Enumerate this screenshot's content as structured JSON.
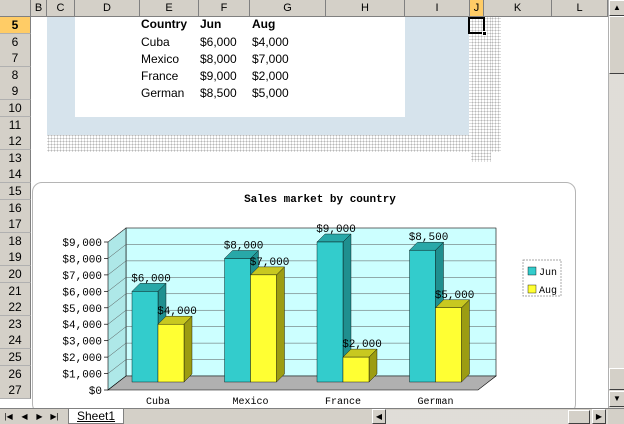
{
  "columns": [
    "B",
    "C",
    "D",
    "E",
    "F",
    "G",
    "H",
    "I",
    "J",
    "K",
    "L"
  ],
  "rows": [
    "5",
    "6",
    "7",
    "8",
    "9",
    "10",
    "11",
    "12",
    "13",
    "14",
    "15",
    "16",
    "17",
    "18",
    "19",
    "20",
    "21",
    "22",
    "23",
    "24",
    "25",
    "26",
    "27"
  ],
  "selected_column": "J",
  "selected_row": "5",
  "table": {
    "headers": [
      "Country",
      "Jun",
      "Aug"
    ],
    "rows": [
      [
        "Cuba",
        "$6,000",
        "$4,000"
      ],
      [
        "Mexico",
        "$8,000",
        "$7,000"
      ],
      [
        "France",
        "$9,000",
        "$2,000"
      ],
      [
        "German",
        "$8,500",
        "$5,000"
      ]
    ]
  },
  "chart_data": {
    "type": "bar",
    "title": "Sales market by country",
    "categories": [
      "Cuba",
      "Mexico",
      "France",
      "German"
    ],
    "series": [
      {
        "name": "Jun",
        "values": [
          6000,
          8000,
          9000,
          8500
        ],
        "labels": [
          "$6,000",
          "$8,000",
          "$9,000",
          "$8,500"
        ]
      },
      {
        "name": "Aug",
        "values": [
          4000,
          7000,
          2000,
          5000
        ],
        "labels": [
          "$4,000",
          "$7,000",
          "$2,000",
          "$5,000"
        ]
      }
    ],
    "yticks": [
      "$0",
      "$1,000",
      "$2,000",
      "$3,000",
      "$4,000",
      "$5,000",
      "$6,000",
      "$7,000",
      "$8,000",
      "$9,000"
    ],
    "ylim": [
      0,
      9000
    ],
    "grid": true,
    "legend": "right",
    "colors": {
      "Jun": "#33cccc",
      "Aug": "#ffff33",
      "plot_bg": "#ccffff",
      "floor": "#b0b0b0"
    }
  },
  "sheet_tab": "Sheet1"
}
